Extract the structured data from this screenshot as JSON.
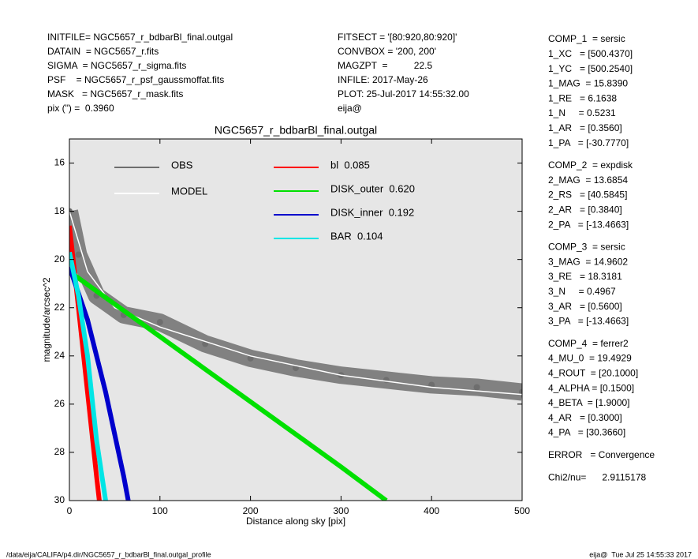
{
  "header_left": [
    "INITFILE= NGC5657_r_bdbarBl_final.outgal",
    "DATAIN  = NGC5657_r.fits",
    "SIGMA  = NGC5657_r_sigma.fits",
    "PSF    = NGC5657_r_psf_gaussmoffat.fits",
    "MASK   = NGC5657_r_mask.fits",
    "pix (\") =  0.3960"
  ],
  "header_mid": [
    "FITSECT = '[80:920,80:920]'",
    "CONVBOX = '200, 200'",
    "MAGZPT  =          22.5",
    "INFILE: 2017-May-26",
    "PLOT: 25-Jul-2017 14:55:32.00",
    "eija@"
  ],
  "params": [
    [
      "COMP_1  = sersic",
      "1_XC   = [500.4370]",
      "1_YC   = [500.2540]",
      "1_MAG  = 15.8390",
      "1_RE   = 6.1638",
      "1_N     = 0.5231",
      "1_AR   = [0.3560]",
      "1_PA   = [-30.7770]"
    ],
    [
      "COMP_2  = expdisk",
      "2_MAG  = 13.6854",
      "2_RS   = [40.5845]",
      "2_AR   = [0.3840]",
      "2_PA   = [-13.4663]"
    ],
    [
      "COMP_3  = sersic",
      "3_MAG  = 14.9602",
      "3_RE   = 18.3181",
      "3_N     = 0.4967",
      "3_AR   = [0.5600]",
      "3_PA   = [-13.4663]"
    ],
    [
      "COMP_4  = ferrer2",
      "4_MU_0  = 19.4929",
      "4_ROUT  = [20.1000]",
      "4_ALPHA = [0.1500]",
      "4_BETA  = [1.9000]",
      "4_AR   = [0.3000]",
      "4_PA   = [30.3660]"
    ],
    [
      "ERROR   = Convergence"
    ],
    [
      "Chi2/nu=      2.9115178"
    ]
  ],
  "footer_left": "/data/eija/CALIFA/p4.dir/NGC5657_r_bdbarBl_final.outgal_profile",
  "footer_right": "eija@  Tue Jul 25 14:55:33 2017",
  "chart_data": {
    "type": "line",
    "title": "NGC5657_r_bdbarBl_final.outgal",
    "x_label": "Distance along sky [pix]",
    "y_label": "magnitude/arcsec^2",
    "xlim": [
      0,
      500
    ],
    "xticks": [
      0,
      100,
      200,
      300,
      400,
      500
    ],
    "ylim": [
      15,
      30
    ],
    "y_inverted": true,
    "yticks": [
      16,
      18,
      20,
      22,
      24,
      26,
      28,
      30
    ],
    "background": "#e6e6e6",
    "series": [
      {
        "name": "OBS",
        "color": "#6e6e6e",
        "marker": "points",
        "x": [
          0,
          10,
          30,
          60,
          100,
          150,
          200,
          250,
          300,
          350,
          400,
          450,
          500
        ],
        "values": [
          18,
          19.8,
          21.5,
          22.3,
          22.6,
          23.5,
          24.1,
          24.5,
          24.8,
          25,
          25.2,
          25.3,
          25.5
        ]
      },
      {
        "name": "MODEL",
        "color": "#ffffff",
        "x": [
          0,
          20,
          50,
          100,
          200,
          300,
          400,
          500
        ],
        "values": [
          18,
          20.5,
          22,
          22.8,
          24,
          24.8,
          25.3,
          25.6
        ]
      },
      {
        "name": "bl  0.085",
        "color": "#ff0000",
        "x": [
          0,
          10,
          20,
          30,
          33
        ],
        "values": [
          18.6,
          22,
          25.5,
          29,
          30
        ]
      },
      {
        "name": "DISK_outer  0.620",
        "color": "#00e000",
        "x": [
          0,
          100,
          200,
          300,
          350
        ],
        "values": [
          20.5,
          23.2,
          25.9,
          28.6,
          30
        ]
      },
      {
        "name": "DISK_inner  0.192",
        "color": "#0000cc",
        "x": [
          0,
          20,
          40,
          60,
          65
        ],
        "values": [
          20.3,
          22.5,
          25.5,
          29,
          30
        ]
      },
      {
        "name": "BAR  0.104",
        "color": "#00e5e5",
        "x": [
          0,
          10,
          20,
          30,
          40
        ],
        "values": [
          19.7,
          21.5,
          24,
          27.5,
          30
        ]
      }
    ]
  }
}
